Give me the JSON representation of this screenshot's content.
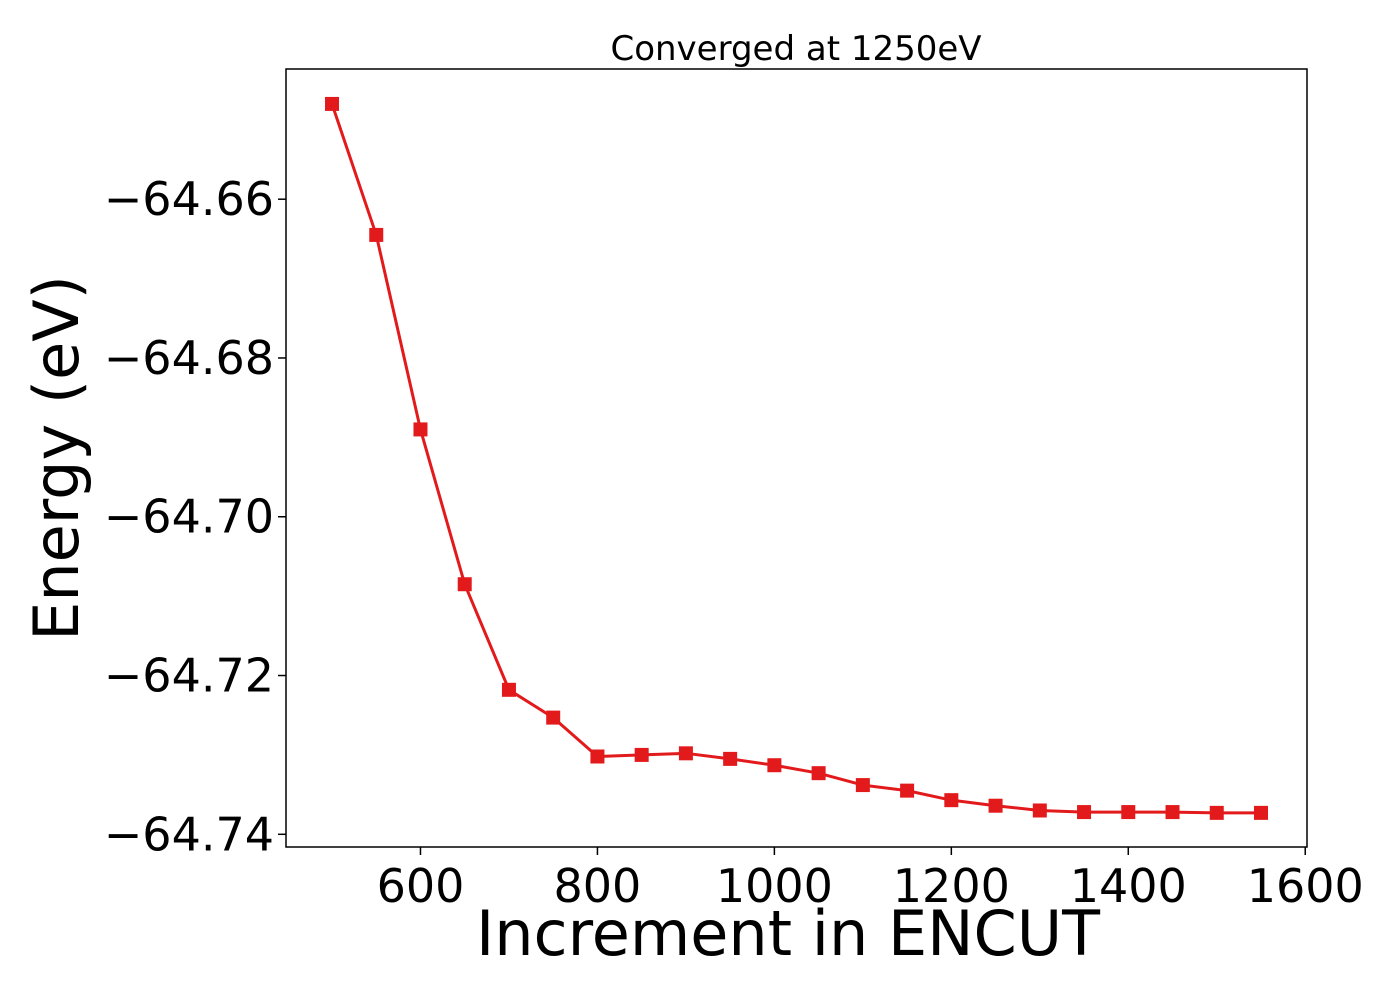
{
  "chart_data": {
    "type": "line",
    "title": "Converged at 1250eV",
    "xlabel": "Increment in ENCUT",
    "ylabel": "Energy (eV)",
    "xlim": [
      448,
      1602
    ],
    "ylim": [
      -64.7416,
      -64.6436
    ],
    "x_ticks": [
      600,
      800,
      1000,
      1200,
      1400,
      1600
    ],
    "x_tick_labels": [
      "600",
      "800",
      "1000",
      "1200",
      "1400",
      "1600"
    ],
    "y_ticks": [
      -64.66,
      -64.68,
      -64.7,
      -64.72,
      -64.74
    ],
    "y_tick_labels": [
      "−64.66",
      "−64.68",
      "−64.70",
      "−64.72",
      "−64.74"
    ],
    "grid": false,
    "series": [
      {
        "color": "#e31a1c",
        "marker": "square",
        "x": [
          500,
          550,
          600,
          650,
          700,
          750,
          800,
          850,
          900,
          950,
          1000,
          1050,
          1100,
          1150,
          1200,
          1250,
          1300,
          1350,
          1400,
          1450,
          1500,
          1550
        ],
        "y": [
          -64.648,
          -64.6645,
          -64.689,
          -64.7085,
          -64.7218,
          -64.7253,
          -64.7302,
          -64.73,
          -64.7298,
          -64.7305,
          -64.7313,
          -64.7323,
          -64.7338,
          -64.7345,
          -64.7357,
          -64.7364,
          -64.737,
          -64.7372,
          -64.7372,
          -64.7372,
          -64.7373,
          -64.7373
        ]
      }
    ]
  }
}
